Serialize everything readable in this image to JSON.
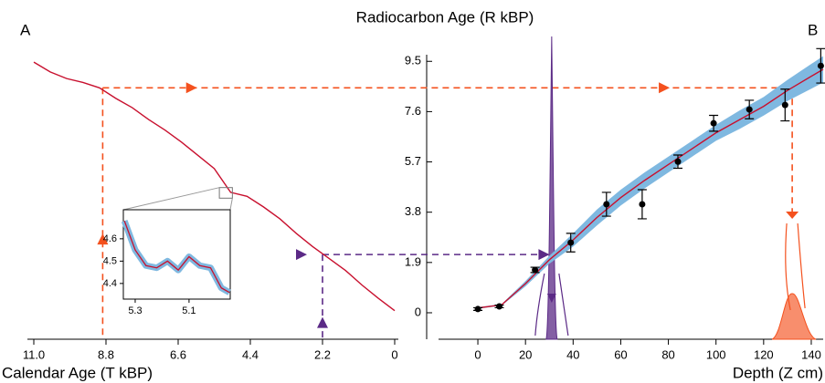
{
  "chart_data": [
    {
      "type": "line",
      "panel": "A",
      "xlabel": "Calendar Age (T kBP)",
      "color": "#c8102e",
      "x": [
        11.0,
        10.5,
        10.0,
        9.5,
        9.0,
        8.5,
        8.0,
        7.5,
        7.0,
        6.5,
        6.0,
        5.5,
        5.0,
        4.5,
        4.0,
        3.5,
        3.0,
        2.5,
        2.0,
        1.5,
        1.0,
        0.5,
        0
      ],
      "values": [
        9.47,
        9.1,
        8.85,
        8.7,
        8.5,
        8.1,
        7.75,
        7.3,
        6.9,
        6.45,
        5.95,
        5.45,
        4.55,
        4.4,
        4.0,
        3.55,
        3.0,
        2.5,
        2.05,
        1.6,
        1.05,
        0.55,
        0.08
      ],
      "xlim": [
        11.0,
        0
      ],
      "ylim": [
        -1,
        9.75
      ],
      "xticks": [
        {
          "value": 11.0,
          "label": "11.0"
        },
        8.8,
        6.6,
        4.4,
        2.2,
        0
      ]
    },
    {
      "type": "line",
      "color": "#c8102e",
      "band_color": "#7fb8e0",
      "x": [
        5.34,
        5.3,
        5.26,
        5.22,
        5.18,
        5.14,
        5.1,
        5.06,
        5.02,
        4.98,
        4.95
      ],
      "values": [
        4.68,
        4.55,
        4.48,
        4.47,
        4.5,
        4.46,
        4.52,
        4.48,
        4.47,
        4.38,
        4.36
      ],
      "xlim": [
        5.344,
        4.947
      ],
      "ylim": [
        4.33,
        4.73
      ],
      "xticks": [
        5.3,
        5.1
      ],
      "yticks": [
        4.4,
        4.5,
        4.6
      ]
    },
    {
      "type": "scatter",
      "panel": "B",
      "title": "Radiocarbon Age (R kBP)",
      "xlabel": "Depth (Z cm)",
      "x": [
        0,
        9,
        24,
        39,
        54,
        69,
        84,
        99,
        114,
        129,
        144
      ],
      "values": [
        0.14,
        0.24,
        1.62,
        2.65,
        4.1,
        4.1,
        5.71,
        7.16,
        7.68,
        7.85,
        9.33
      ],
      "errors": [
        0.05,
        0.05,
        0.1,
        0.35,
        0.45,
        0.55,
        0.25,
        0.3,
        0.35,
        0.6,
        0.65
      ],
      "fit": {
        "x": [
          0,
          10,
          20,
          30,
          40,
          50,
          60,
          70,
          80,
          90,
          100,
          110,
          120,
          130,
          145
        ],
        "values": [
          0.18,
          0.3,
          1.1,
          2.0,
          2.75,
          3.6,
          4.35,
          5.0,
          5.6,
          6.2,
          6.8,
          7.3,
          7.8,
          8.4,
          9.2
        ],
        "lower": [
          0.15,
          0.27,
          1.0,
          1.85,
          2.5,
          3.3,
          4.05,
          4.7,
          5.3,
          5.9,
          6.5,
          6.95,
          7.45,
          8.0,
          8.7
        ],
        "upper": [
          0.21,
          0.33,
          1.2,
          2.15,
          3.0,
          3.9,
          4.65,
          5.3,
          5.9,
          6.5,
          7.1,
          7.65,
          8.15,
          8.8,
          9.7
        ],
        "color": "#c8102e",
        "band_color": "#7fb8e0"
      },
      "xlim": [
        -21.5,
        145
      ],
      "ylim": [
        -1,
        9.75
      ],
      "xticks": [
        0,
        20,
        40,
        60,
        80,
        100,
        120,
        140
      ],
      "yticks": [
        0,
        1.9,
        3.8,
        5.7,
        7.6,
        9.5
      ],
      "guides": [
        {
          "calendar_age": 8.9,
          "radiocarbon": 8.5,
          "depth": 132,
          "color": "#f4511e"
        },
        {
          "calendar_age": 2.2,
          "radiocarbon": 2.2,
          "depth": 31,
          "color": "#5b2a86"
        }
      ]
    }
  ]
}
